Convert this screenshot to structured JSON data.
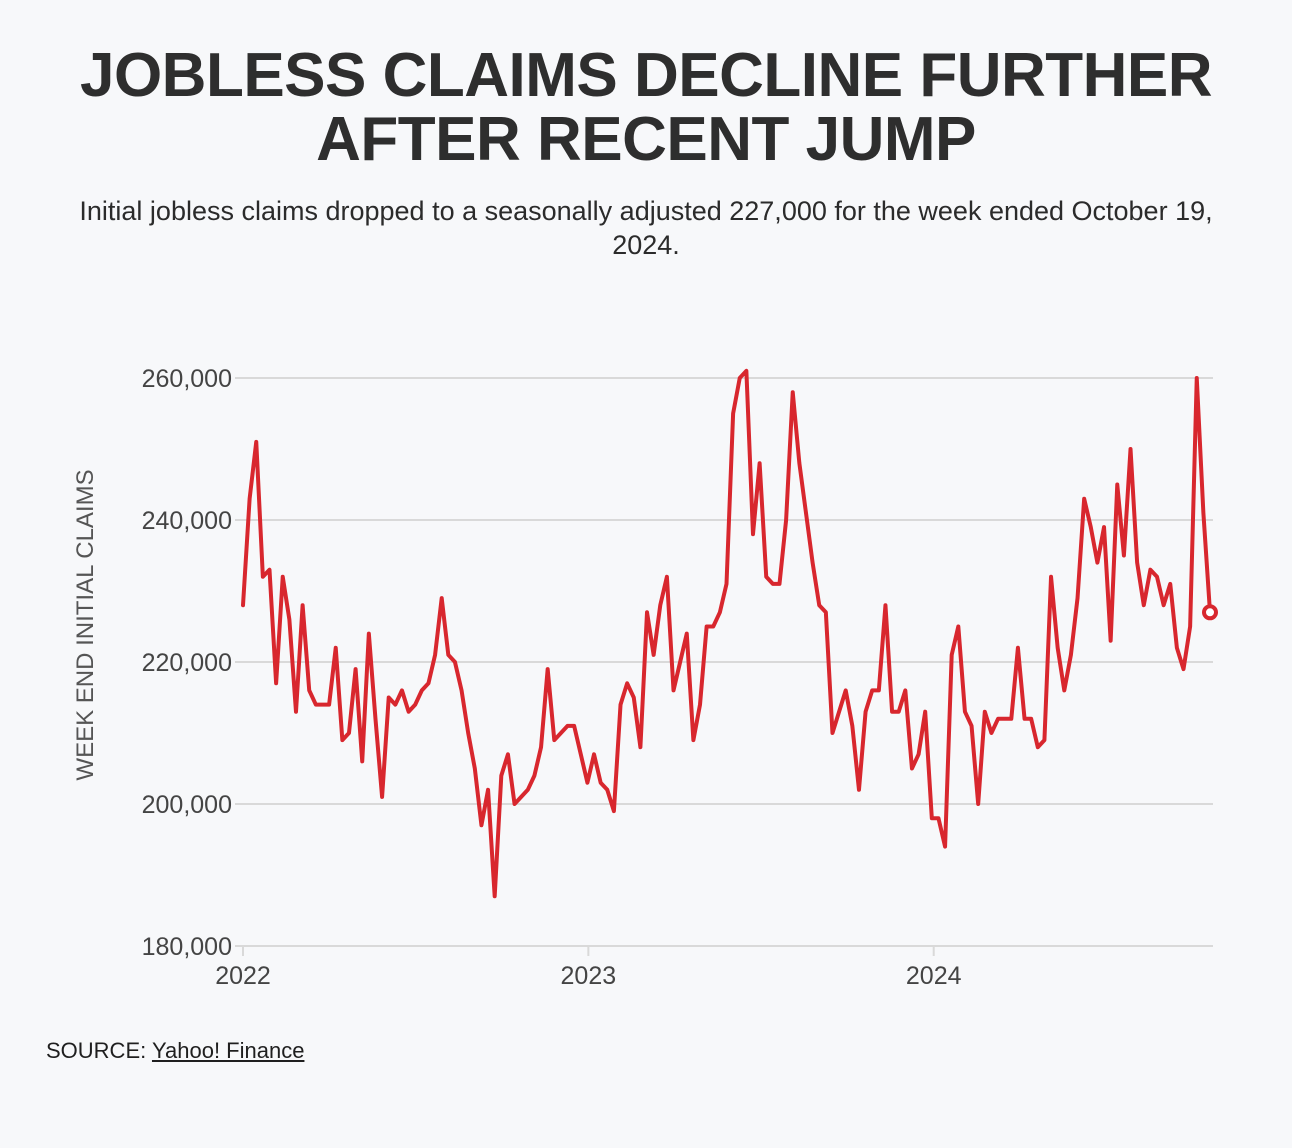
{
  "title_line1": "JOBLESS CLAIMS DECLINE FURTHER",
  "title_line2": "AFTER RECENT JUMP",
  "subtitle": "Initial jobless claims dropped to a seasonally adjusted 227,000 for the week ended October 19, 2024.",
  "source_label": "SOURCE:",
  "source_link": "Yahoo! Finance",
  "colors": {
    "line": "#d8272e",
    "grid": "#d9d9d9",
    "axis_text": "#444444"
  },
  "chart_data": {
    "type": "line",
    "title": "JOBLESS CLAIMS DECLINE FURTHER AFTER RECENT JUMP",
    "xlabel": "",
    "ylabel": "WEEK END INITIAL CLAIMS",
    "ylim": [
      180000,
      260000
    ],
    "yticks": [
      180000,
      200000,
      220000,
      240000,
      260000
    ],
    "ytick_labels": [
      "180,000",
      "200,000",
      "220,000",
      "240,000",
      "260,000"
    ],
    "xticks": [
      "2022",
      "2023",
      "2024"
    ],
    "x_start": "2022-01-01",
    "x_end": "2024-10-19",
    "grid": true,
    "highlight_last_point": true,
    "series": [
      {
        "name": "",
        "values": [
          228000,
          243000,
          251000,
          232000,
          233000,
          217000,
          232000,
          226000,
          213000,
          228000,
          216000,
          214000,
          214000,
          214000,
          222000,
          209000,
          210000,
          219000,
          206000,
          224000,
          212000,
          201000,
          215000,
          214000,
          216000,
          213000,
          214000,
          216000,
          217000,
          221000,
          229000,
          221000,
          220000,
          216000,
          210000,
          205000,
          197000,
          202000,
          187000,
          204000,
          207000,
          200000,
          201000,
          202000,
          204000,
          208000,
          219000,
          209000,
          210000,
          211000,
          211000,
          207000,
          203000,
          207000,
          203000,
          202000,
          199000,
          214000,
          217000,
          215000,
          208000,
          227000,
          221000,
          228000,
          232000,
          216000,
          220000,
          224000,
          209000,
          214000,
          225000,
          225000,
          227000,
          231000,
          255000,
          260000,
          261000,
          238000,
          248000,
          232000,
          231000,
          231000,
          240000,
          258000,
          248000,
          241000,
          234000,
          228000,
          227000,
          210000,
          213000,
          216000,
          211000,
          202000,
          213000,
          216000,
          216000,
          228000,
          213000,
          213000,
          216000,
          205000,
          207000,
          213000,
          198000,
          198000,
          194000,
          221000,
          225000,
          213000,
          211000,
          200000,
          213000,
          210000,
          212000,
          212000,
          212000,
          222000,
          212000,
          212000,
          208000,
          209000,
          232000,
          222000,
          216000,
          221000,
          229000,
          243000,
          239000,
          234000,
          239000,
          223000,
          245000,
          235000,
          250000,
          234000,
          228000,
          233000,
          232000,
          228000,
          231000,
          222000,
          219000,
          225000,
          260000,
          241000,
          227000
        ]
      }
    ],
    "last_value": 227000,
    "last_date": "October 19, 2024"
  }
}
